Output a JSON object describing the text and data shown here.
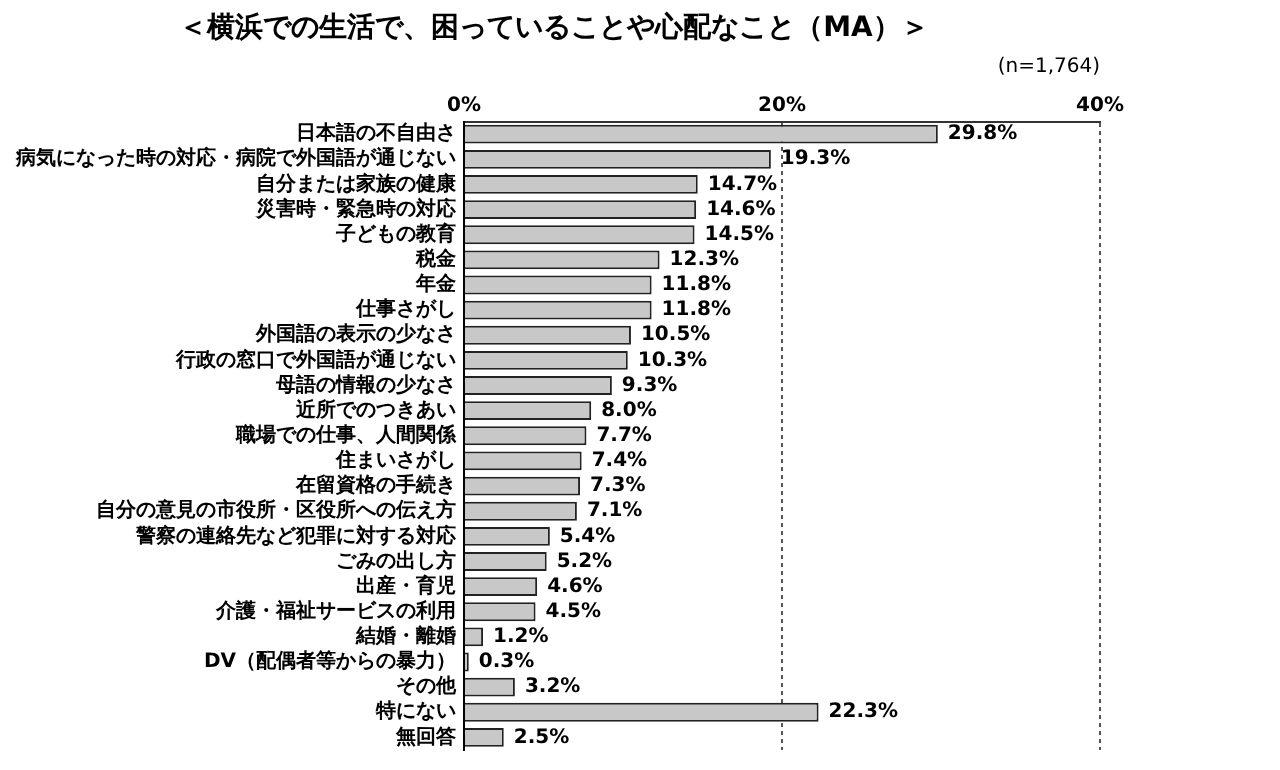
{
  "chart_data": {
    "type": "bar",
    "orientation": "horizontal",
    "title": "＜横浜での生活で、困っていることや心配なこと（MA）＞",
    "annotations": [
      "(n=1,764)"
    ],
    "categories": [
      "日本語の不自由さ",
      "病気になった時の対応・病院で外国語が通じない",
      "自分または家族の健康",
      "災害時・緊急時の対応",
      "子どもの教育",
      "税金",
      "年金",
      "仕事さがし",
      "外国語の表示の少なさ",
      "行政の窓口で外国語が通じない",
      "母語の情報の少なさ",
      "近所でのつきあい",
      "職場での仕事、人間関係",
      "住まいさがし",
      "在留資格の手続き",
      "自分の意見の市役所・区役所への伝え方",
      "警察の連絡先など犯罪に対する対応",
      "ごみの出し方",
      "出産・育児",
      "介護・福祉サービスの利用",
      "結婚・離婚",
      "DV（配偶者等からの暴力）",
      "その他",
      "特にない",
      "無回答"
    ],
    "values": [
      29.8,
      19.3,
      14.7,
      14.6,
      14.5,
      12.3,
      11.8,
      11.8,
      10.5,
      10.3,
      9.3,
      8.0,
      7.7,
      7.4,
      7.3,
      7.1,
      5.4,
      5.2,
      4.6,
      4.5,
      1.2,
      0.3,
      3.2,
      22.3,
      2.5
    ],
    "value_labels": [
      "29.8%",
      "19.3%",
      "14.7%",
      "14.6%",
      "14.5%",
      "12.3%",
      "11.8%",
      "11.8%",
      "10.5%",
      "10.3%",
      "9.3%",
      "8.0%",
      "7.7%",
      "7.4%",
      "7.3%",
      "7.1%",
      "5.4%",
      "5.2%",
      "4.6%",
      "4.5%",
      "1.2%",
      "0.3%",
      "3.2%",
      "22.3%",
      "2.5%"
    ],
    "color": "#c8c8c8",
    "xlim": [
      0,
      40
    ],
    "xticks": [
      {
        "value": 0,
        "label": "0%"
      },
      {
        "value": 20,
        "label": "20%"
      },
      {
        "value": 40,
        "label": "40%"
      }
    ],
    "grid": "x",
    "legend": false
  }
}
